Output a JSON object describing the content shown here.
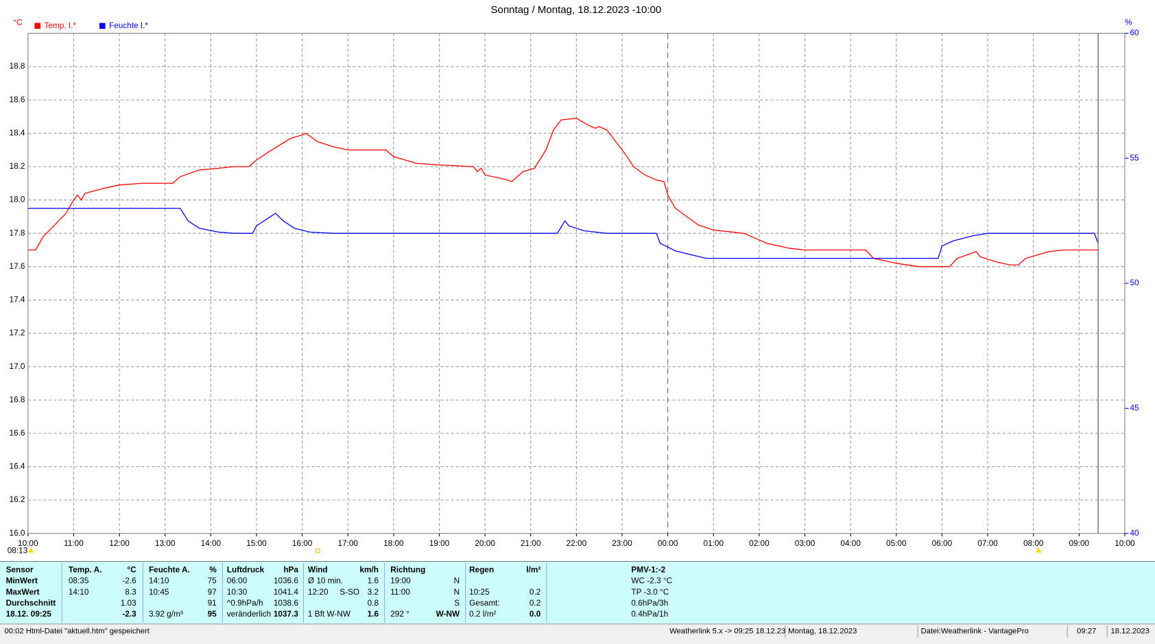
{
  "chart_data": {
    "type": "line",
    "title": "Sonntag / Montag, 18.12.2023  -10:00",
    "y_label": "°C",
    "y2_label": "%",
    "x_annotation": "08:13",
    "xlim": [
      "10:00",
      "10:00"
    ],
    "xticks": [
      "10:00",
      "11:00",
      "12:00",
      "13:00",
      "14:00",
      "15:00",
      "16:00",
      "17:00",
      "18:00",
      "19:00",
      "20:00",
      "21:00",
      "22:00",
      "23:00",
      "00:00",
      "01:00",
      "02:00",
      "03:00",
      "04:00",
      "05:00",
      "06:00",
      "07:00",
      "08:00",
      "09:00",
      "10:00"
    ],
    "ylim": [
      16,
      19
    ],
    "yticks": [
      {
        "value": 16,
        "label": "16.0"
      },
      {
        "value": 16.2,
        "label": "16.2"
      },
      {
        "value": 16.4,
        "label": "16.4"
      },
      {
        "value": 16.6,
        "label": "16.6"
      },
      {
        "value": 16.8,
        "label": "16.8"
      },
      {
        "value": 17,
        "label": "17.0"
      },
      {
        "value": 17.2,
        "label": "17.2"
      },
      {
        "value": 17.4,
        "label": "17.4"
      },
      {
        "value": 17.6,
        "label": "17.6"
      },
      {
        "value": 17.8,
        "label": "17.8"
      },
      {
        "value": 18,
        "label": "18.0"
      },
      {
        "value": 18.2,
        "label": "18.2"
      },
      {
        "value": 18.4,
        "label": "18.4"
      },
      {
        "value": 18.6,
        "label": "18.6"
      },
      {
        "value": 18.8,
        "label": "18.8"
      }
    ],
    "y2lim": [
      40,
      60
    ],
    "y2ticks": [
      40,
      45,
      50,
      55,
      60
    ],
    "grid": true,
    "series": [
      {
        "name": "Temp. I.*",
        "color": "#ff0000",
        "x": [
          "10:00",
          "10:10",
          "10:20",
          "10:35",
          "10:50",
          "11:00",
          "11:05",
          "11:10",
          "11:15",
          "11:40",
          "12:00",
          "12:30",
          "13:10",
          "13:20",
          "13:45",
          "14:10",
          "14:30",
          "14:50",
          "15:00",
          "15:10",
          "15:20",
          "15:45",
          "16:00",
          "16:05",
          "16:20",
          "16:40",
          "17:00",
          "17:50",
          "18:00",
          "18:30",
          "19:00",
          "19:45",
          "19:50",
          "19:55",
          "20:00",
          "20:30",
          "20:35",
          "20:50",
          "21:05",
          "21:20",
          "21:30",
          "21:40",
          "22:00",
          "22:15",
          "22:25",
          "22:30",
          "22:40",
          "22:55",
          "23:05",
          "23:15",
          "23:30",
          "23:45",
          "23:55",
          "00:00",
          "00:10",
          "00:40",
          "01:00",
          "01:40",
          "01:50",
          "02:10",
          "02:40",
          "03:00",
          "04:20",
          "04:30",
          "05:00",
          "05:30",
          "06:10",
          "06:20",
          "06:45",
          "06:50",
          "07:10",
          "07:30",
          "07:40",
          "07:50",
          "08:20",
          "08:40",
          "09:20",
          "09:25"
        ],
        "values": [
          17.7,
          17.7,
          17.78,
          17.85,
          17.92,
          18.0,
          18.03,
          18.0,
          18.04,
          18.07,
          18.09,
          18.1,
          18.1,
          18.14,
          18.18,
          18.19,
          18.2,
          18.2,
          18.24,
          18.27,
          18.3,
          18.37,
          18.39,
          18.4,
          18.35,
          18.32,
          18.3,
          18.3,
          18.26,
          18.22,
          18.21,
          18.2,
          18.17,
          18.19,
          18.15,
          18.12,
          18.11,
          18.17,
          18.19,
          18.3,
          18.42,
          18.48,
          18.49,
          18.45,
          18.43,
          18.44,
          18.42,
          18.33,
          18.27,
          18.2,
          18.15,
          18.12,
          18.11,
          18.03,
          17.95,
          17.85,
          17.82,
          17.8,
          17.78,
          17.74,
          17.71,
          17.7,
          17.7,
          17.65,
          17.62,
          17.6,
          17.6,
          17.65,
          17.69,
          17.66,
          17.63,
          17.61,
          17.61,
          17.65,
          17.69,
          17.7,
          17.7,
          17.7
        ]
      },
      {
        "name": "Feuchte I.*",
        "color": "#0000ff",
        "axis": "y2",
        "x": [
          "10:00",
          "13:20",
          "13:30",
          "13:45",
          "14:10",
          "14:30",
          "14:55",
          "15:00",
          "15:20",
          "15:25",
          "15:35",
          "15:50",
          "16:10",
          "16:40",
          "21:35",
          "21:45",
          "21:50",
          "22:10",
          "22:40",
          "23:45",
          "23:50",
          "00:10",
          "00:50",
          "05:55",
          "06:00",
          "06:15",
          "06:40",
          "07:00",
          "09:20",
          "09:25"
        ],
        "values": [
          53,
          53,
          52.5,
          52.2,
          52.05,
          52,
          52,
          52.3,
          52.7,
          52.8,
          52.5,
          52.2,
          52.05,
          52,
          52,
          52.5,
          52.3,
          52.1,
          52,
          52,
          51.6,
          51.3,
          51,
          51,
          51.5,
          51.7,
          51.9,
          52,
          52,
          51.6
        ]
      }
    ]
  },
  "stats_table": {
    "rows": [
      [
        "Sensor",
        "Temp. A.",
        "°C",
        "Feuchte A.",
        "%",
        "Luftdruck",
        "hPa",
        "Wind",
        null,
        "km/h",
        "Richtung",
        null,
        "Regen",
        "l/m²",
        "PMV-1:-2"
      ],
      [
        "MinWert",
        "08:35",
        "-2.6",
        "14:10",
        "75",
        "06:00",
        "1036.6",
        "Ø 10 min.",
        null,
        "1.6",
        "19:00",
        "N",
        null,
        null,
        "WC -2.3 °C"
      ],
      [
        "MaxWert",
        "14:10",
        "8.3",
        "10:45",
        "97",
        "10:30",
        "1041.4",
        "12:20",
        "S-SO",
        "3.2",
        "11:00",
        "N",
        "10:25",
        "0.2",
        "TP -3.0 °C"
      ],
      [
        "Durchschnitt",
        null,
        "1.03",
        null,
        "91",
        "^0.9hPa/h",
        "1038.6",
        null,
        null,
        "0.8",
        null,
        "S",
        "Gesamt:",
        "0.2",
        "0.6hPa/3h"
      ],
      [
        "18.12. 09:25",
        null,
        "-2.3",
        "3.92 g/m³",
        "95",
        "veränderlich",
        "1037.3",
        "1 Bft W-NW",
        null,
        "1.6",
        "292 °",
        "W-NW",
        "0.2 l/m²",
        "0.0",
        "0.4hPa/1h"
      ]
    ]
  },
  "status_bar": [
    "00:02  Html-Datei  \"aktuell.htm\"  gespeichert",
    "Weatherlink 5.x -> 09:25  18.12.23",
    "Montag, 18.12.2023",
    "Datei:Weatherlink - VantagePro",
    "09:27",
    "18.12.2023"
  ]
}
